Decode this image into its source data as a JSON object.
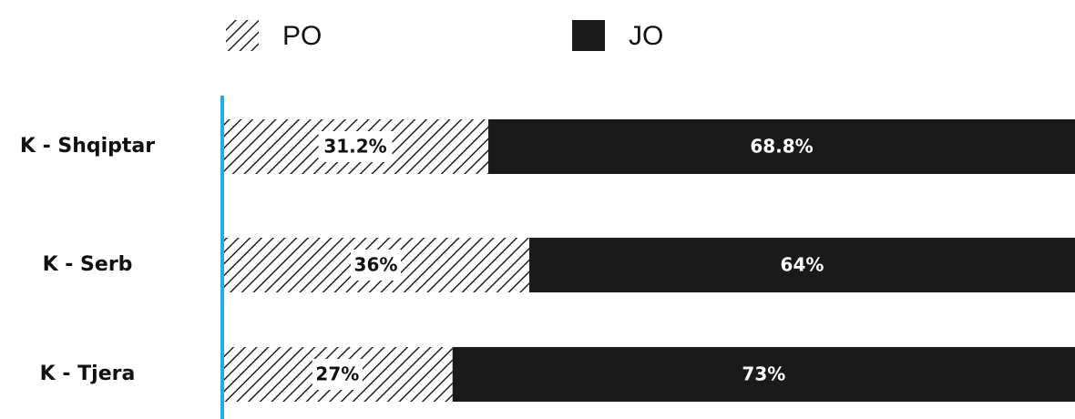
{
  "chart_data": {
    "type": "stacked_bar_horizontal",
    "categories": [
      "K - Shqiptar",
      "K - Serb",
      "K - Tjera"
    ],
    "series": [
      {
        "name": "PO",
        "color": "#222222",
        "pattern": "hatch",
        "values": [
          31.2,
          36,
          27
        ],
        "value_labels": [
          "31.2%",
          "36%",
          "27%"
        ]
      },
      {
        "name": "JO",
        "color": "#1a1a1a",
        "values": [
          68.8,
          64,
          73
        ],
        "value_labels": [
          "68.8%",
          "64%",
          "73%"
        ]
      }
    ],
    "xlim": [
      0,
      100
    ],
    "axis_color": "#29abe2",
    "legend": "top"
  }
}
